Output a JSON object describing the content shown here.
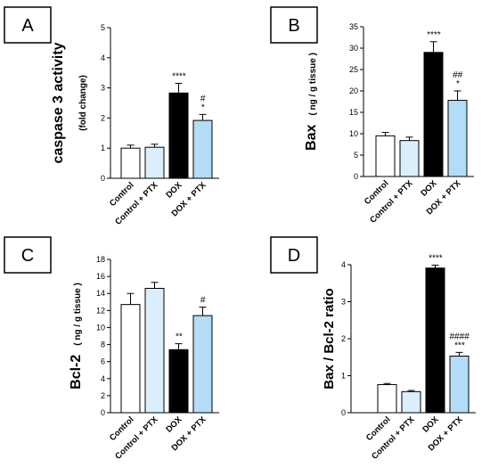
{
  "colors": {
    "Control": "#ffffff",
    "Control + PTX": "#dbeefb",
    "DOX": "#000000",
    "DOX + PTX": "#b2dcf7"
  },
  "chart_data": [
    {
      "type": "bar",
      "panel": "A",
      "title": "",
      "ylabel_main": "caspase 3 activity",
      "ylabel_sub": "(fold change)",
      "categories": [
        "Control",
        "Control + PTX",
        "DOX",
        "DOX + PTX"
      ],
      "values": [
        1.0,
        1.03,
        2.83,
        1.92
      ],
      "errors": [
        0.1,
        0.1,
        0.32,
        0.2
      ],
      "significance": [
        "",
        "",
        "****",
        "*"
      ],
      "significance_hash": [
        "",
        "",
        "",
        "#"
      ],
      "ylim": [
        0,
        5
      ],
      "yticks": [
        0,
        1,
        2,
        3,
        4,
        5
      ]
    },
    {
      "type": "bar",
      "panel": "B",
      "title": "",
      "ylabel_main": "Bax",
      "ylabel_sub": "( ng / g tissue )",
      "categories": [
        "Control",
        "Control + PTX",
        "DOX",
        "DOX + PTX"
      ],
      "values": [
        9.5,
        8.4,
        29.0,
        17.8
      ],
      "errors": [
        0.8,
        0.8,
        2.5,
        2.2
      ],
      "significance": [
        "",
        "",
        "****",
        "*"
      ],
      "significance_hash": [
        "",
        "",
        "",
        "##"
      ],
      "ylim": [
        0,
        35
      ],
      "yticks": [
        0,
        5,
        10,
        15,
        20,
        25,
        30,
        35
      ]
    },
    {
      "type": "bar",
      "panel": "C",
      "title": "",
      "ylabel_main": "Bcl-2",
      "ylabel_sub": "( ng / g tissue )",
      "categories": [
        "Control",
        "Control + PTX",
        "DOX",
        "DOX + PTX"
      ],
      "values": [
        12.7,
        14.6,
        7.4,
        11.4
      ],
      "errors": [
        1.3,
        0.7,
        0.7,
        1.0
      ],
      "significance": [
        "",
        "",
        "**",
        ""
      ],
      "significance_hash": [
        "",
        "",
        "",
        "#"
      ],
      "ylim": [
        0,
        18
      ],
      "yticks": [
        0,
        2,
        4,
        6,
        8,
        10,
        12,
        14,
        16,
        18
      ]
    },
    {
      "type": "bar",
      "panel": "D",
      "title": "",
      "ylabel_main": "Bax / Bcl-2 ratio",
      "ylabel_sub": "",
      "categories": [
        "Control",
        "Control + PTX",
        "DOX",
        "DOX + PTX"
      ],
      "values": [
        0.76,
        0.57,
        3.91,
        1.53
      ],
      "errors": [
        0.03,
        0.03,
        0.08,
        0.1
      ],
      "significance": [
        "",
        "",
        "****",
        "***"
      ],
      "significance_hash": [
        "",
        "",
        "",
        "####"
      ],
      "ylim": [
        0,
        4
      ],
      "yticks": [
        0,
        1,
        2,
        3,
        4
      ]
    }
  ]
}
